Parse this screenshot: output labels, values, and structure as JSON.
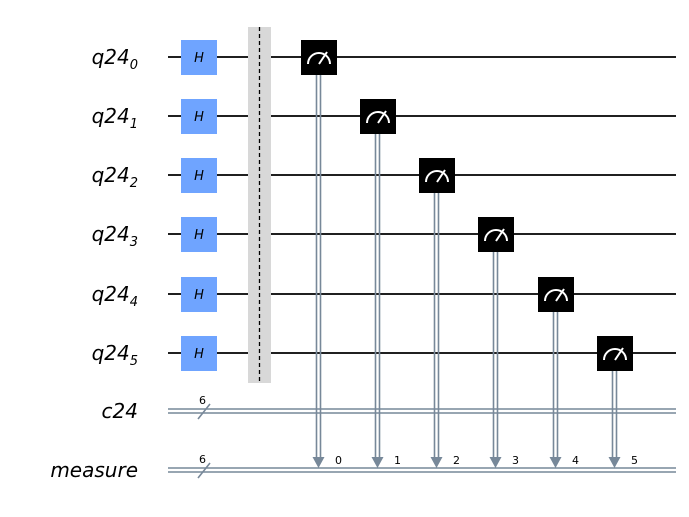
{
  "circuit": {
    "qubits": [
      {
        "register": "q24",
        "index": "0"
      },
      {
        "register": "q24",
        "index": "1"
      },
      {
        "register": "q24",
        "index": "2"
      },
      {
        "register": "q24",
        "index": "3"
      },
      {
        "register": "q24",
        "index": "4"
      },
      {
        "register": "q24",
        "index": "5"
      }
    ],
    "classical_registers": [
      {
        "name": "c24",
        "width": "6"
      },
      {
        "name": "measure",
        "width": "6"
      }
    ],
    "gate_label": "H",
    "measure_bits": [
      "0",
      "1",
      "2",
      "3",
      "4",
      "5"
    ]
  },
  "colors": {
    "h_gate": "#6fa4ff",
    "measure_box": "#000000",
    "barrier": "#d8d8d8",
    "classical_wire": "#778899",
    "wire": "#000000"
  },
  "icons": {
    "measure": "meter-icon"
  }
}
